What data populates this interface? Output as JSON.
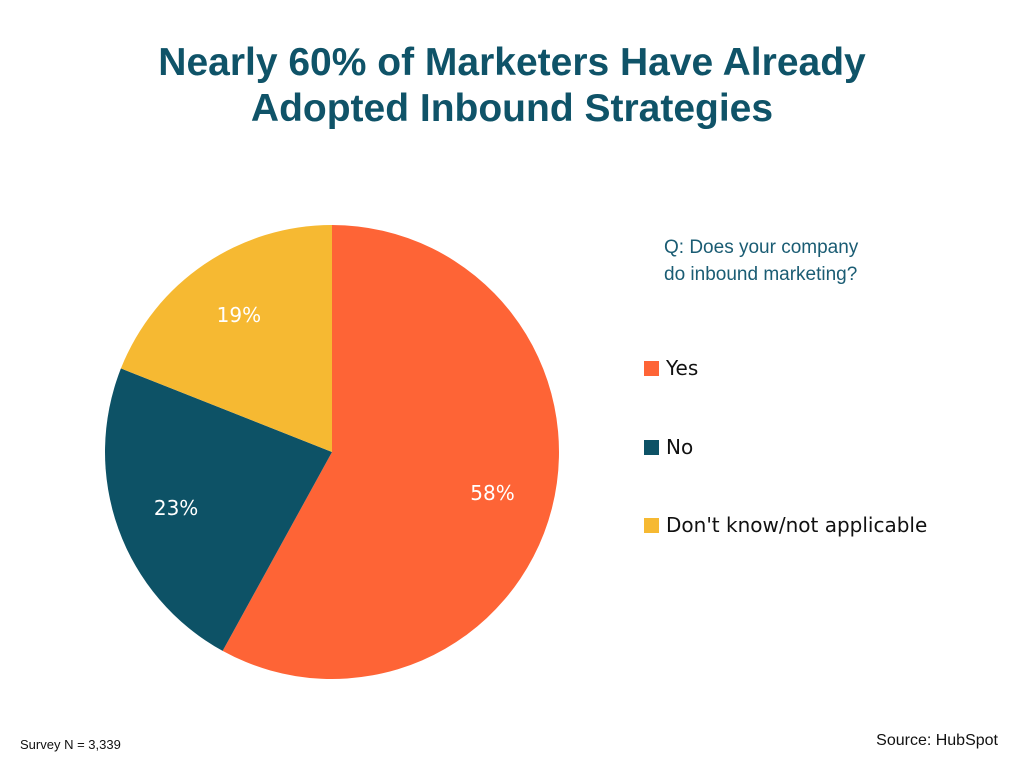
{
  "title": {
    "line1": "Nearly 60% of Marketers Have Already",
    "line2": "Adopted Inbound Strategies"
  },
  "question": {
    "line1": "Q: Does your company",
    "line2": "do inbound marketing?"
  },
  "footnote": "Survey N = 3,339",
  "source": "Source: HubSpot",
  "chart_data": {
    "type": "pie",
    "title": "Nearly 60% of Marketers Have Already Adopted Inbound Strategies",
    "slices": [
      {
        "label": "Yes",
        "value": 58,
        "display": "58%",
        "color": "#fe6436"
      },
      {
        "label": "No",
        "value": 23,
        "display": "23%",
        "color": "#0d5266"
      },
      {
        "label": "Don't know/not applicable",
        "value": 19,
        "display": "19%",
        "color": "#f6b932"
      }
    ],
    "start": "12 o'clock",
    "direction": "clockwise",
    "legend": "right"
  }
}
